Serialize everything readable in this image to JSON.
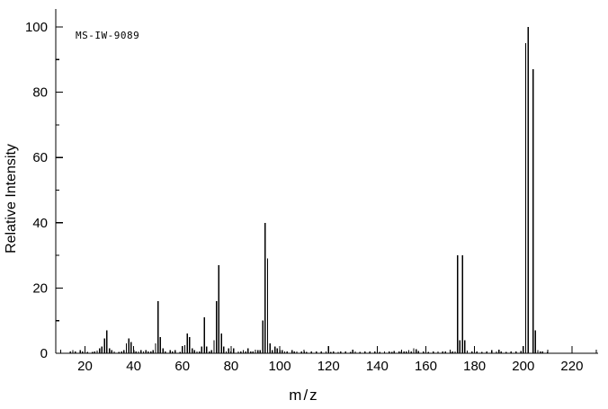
{
  "annotation": "MS-IW-9089",
  "colors": {
    "line": "#000000",
    "text": "#000000",
    "background": "#ffffff"
  },
  "chart_data": {
    "type": "bar",
    "title": "",
    "xlabel": "m/z",
    "ylabel": "Relative Intensity",
    "xlim": [
      8,
      230
    ],
    "ylim": [
      0,
      100
    ],
    "grid": false,
    "legend": "none",
    "x_ticks": [
      20,
      40,
      60,
      80,
      100,
      120,
      140,
      160,
      180,
      200,
      220
    ],
    "x_minor_step": 10,
    "y_ticks": [
      0,
      20,
      40,
      60,
      80,
      100
    ],
    "y_minor_step": 10,
    "peaks": [
      [
        14,
        0.5
      ],
      [
        15,
        1
      ],
      [
        16,
        0.5
      ],
      [
        18,
        1
      ],
      [
        19,
        0.5
      ],
      [
        21,
        0.4
      ],
      [
        23,
        0.4
      ],
      [
        24,
        0.6
      ],
      [
        25,
        0.8
      ],
      [
        26,
        1.5
      ],
      [
        27,
        2
      ],
      [
        28,
        4.5
      ],
      [
        29,
        7
      ],
      [
        30,
        1.5
      ],
      [
        31,
        1
      ],
      [
        32,
        0.5
      ],
      [
        34,
        0.4
      ],
      [
        35,
        0.6
      ],
      [
        36,
        1
      ],
      [
        37,
        3
      ],
      [
        38,
        4.5
      ],
      [
        39,
        3.5
      ],
      [
        40,
        1
      ],
      [
        41,
        0.6
      ],
      [
        42,
        0.5
      ],
      [
        43,
        1
      ],
      [
        44,
        0.6
      ],
      [
        45,
        1
      ],
      [
        46,
        0.5
      ],
      [
        47,
        0.6
      ],
      [
        48,
        1
      ],
      [
        49,
        3
      ],
      [
        50,
        16
      ],
      [
        51,
        5
      ],
      [
        52,
        1.5
      ],
      [
        53,
        0.6
      ],
      [
        55,
        1
      ],
      [
        56,
        0.5
      ],
      [
        57,
        1
      ],
      [
        59,
        0.4
      ],
      [
        60,
        1
      ],
      [
        61,
        2.5
      ],
      [
        62,
        6
      ],
      [
        63,
        5
      ],
      [
        64,
        1.5
      ],
      [
        65,
        1
      ],
      [
        66,
        0.5
      ],
      [
        67,
        0.6
      ],
      [
        68,
        2
      ],
      [
        69,
        11
      ],
      [
        70,
        2
      ],
      [
        71,
        0.6
      ],
      [
        72,
        1
      ],
      [
        73,
        4
      ],
      [
        74,
        16
      ],
      [
        75,
        27
      ],
      [
        76,
        6
      ],
      [
        77,
        2
      ],
      [
        78,
        0.6
      ],
      [
        79,
        1.5
      ],
      [
        80,
        0.5
      ],
      [
        81,
        1.5
      ],
      [
        83,
        0.5
      ],
      [
        84,
        0.6
      ],
      [
        85,
        1
      ],
      [
        86,
        0.5
      ],
      [
        87,
        1.5
      ],
      [
        88,
        0.5
      ],
      [
        89,
        0.6
      ],
      [
        90,
        0.5
      ],
      [
        91,
        1
      ],
      [
        92,
        1
      ],
      [
        93,
        10
      ],
      [
        94,
        40
      ],
      [
        95,
        29
      ],
      [
        96,
        3
      ],
      [
        97,
        1
      ],
      [
        98,
        2
      ],
      [
        99,
        1.5
      ],
      [
        100,
        1
      ],
      [
        101,
        1
      ],
      [
        102,
        0.6
      ],
      [
        103,
        0.5
      ],
      [
        105,
        1
      ],
      [
        106,
        0.5
      ],
      [
        107,
        0.6
      ],
      [
        109,
        0.5
      ],
      [
        110,
        0.6
      ],
      [
        111,
        0.4
      ],
      [
        113,
        0.5
      ],
      [
        115,
        0.5
      ],
      [
        117,
        0.5
      ],
      [
        119,
        0.5
      ],
      [
        120,
        0.6
      ],
      [
        121,
        0.4
      ],
      [
        122,
        0.6
      ],
      [
        124,
        0.4
      ],
      [
        125,
        0.5
      ],
      [
        127,
        0.5
      ],
      [
        129,
        0.4
      ],
      [
        131,
        0.5
      ],
      [
        133,
        0.4
      ],
      [
        135,
        0.5
      ],
      [
        137,
        0.5
      ],
      [
        139,
        0.5
      ],
      [
        141,
        0.4
      ],
      [
        143,
        0.5
      ],
      [
        145,
        0.5
      ],
      [
        146,
        0.4
      ],
      [
        147,
        0.7
      ],
      [
        149,
        0.5
      ],
      [
        150,
        0.5
      ],
      [
        151,
        0.6
      ],
      [
        152,
        0.6
      ],
      [
        153,
        1
      ],
      [
        154,
        0.6
      ],
      [
        155,
        1.5
      ],
      [
        156,
        1.2
      ],
      [
        157,
        0.7
      ],
      [
        159,
        0.5
      ],
      [
        160,
        0.6
      ],
      [
        161,
        0.4
      ],
      [
        163,
        0.5
      ],
      [
        165,
        0.5
      ],
      [
        167,
        0.5
      ],
      [
        168,
        0.5
      ],
      [
        170,
        0.4
      ],
      [
        171,
        0.6
      ],
      [
        172,
        0.5
      ],
      [
        173,
        30
      ],
      [
        174,
        4
      ],
      [
        175,
        30
      ],
      [
        176,
        4
      ],
      [
        177,
        0.8
      ],
      [
        179,
        0.5
      ],
      [
        181,
        0.5
      ],
      [
        183,
        0.4
      ],
      [
        185,
        0.5
      ],
      [
        187,
        1
      ],
      [
        189,
        0.5
      ],
      [
        191,
        0.5
      ],
      [
        193,
        0.4
      ],
      [
        195,
        0.5
      ],
      [
        197,
        0.5
      ],
      [
        199,
        0.7
      ],
      [
        200,
        0.8
      ],
      [
        201,
        95
      ],
      [
        202,
        100
      ],
      [
        204,
        87
      ],
      [
        205,
        7
      ],
      [
        206,
        1
      ],
      [
        207,
        0.5
      ],
      [
        208,
        0.5
      ],
      [
        210,
        0.4
      ]
    ]
  }
}
